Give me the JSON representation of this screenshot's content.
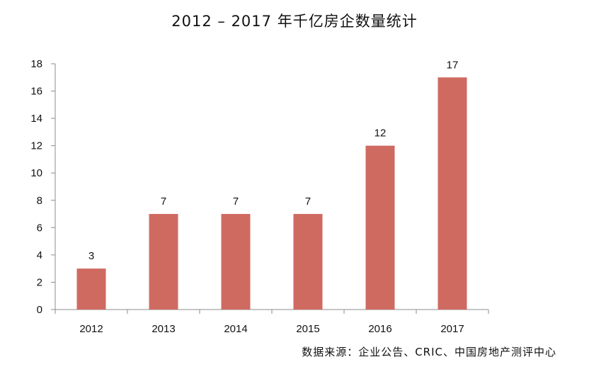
{
  "chart_data": {
    "type": "bar",
    "title": "2012 – 2017 年千亿房企数量统计",
    "categories": [
      "2012",
      "2013",
      "2014",
      "2015",
      "2016",
      "2017"
    ],
    "values": [
      3,
      7,
      7,
      7,
      12,
      17
    ],
    "data_labels": [
      "3",
      "7",
      "7",
      "7",
      "12",
      "17"
    ],
    "ylim": [
      0,
      18
    ],
    "yticks": [
      0,
      2,
      4,
      6,
      8,
      10,
      12,
      14,
      16,
      18
    ],
    "xlabel": "",
    "ylabel": "",
    "grid": false,
    "bar_color": "#CF6A61"
  },
  "source": "数据来源：企业公告、CRIC、中国房地产测评中心"
}
